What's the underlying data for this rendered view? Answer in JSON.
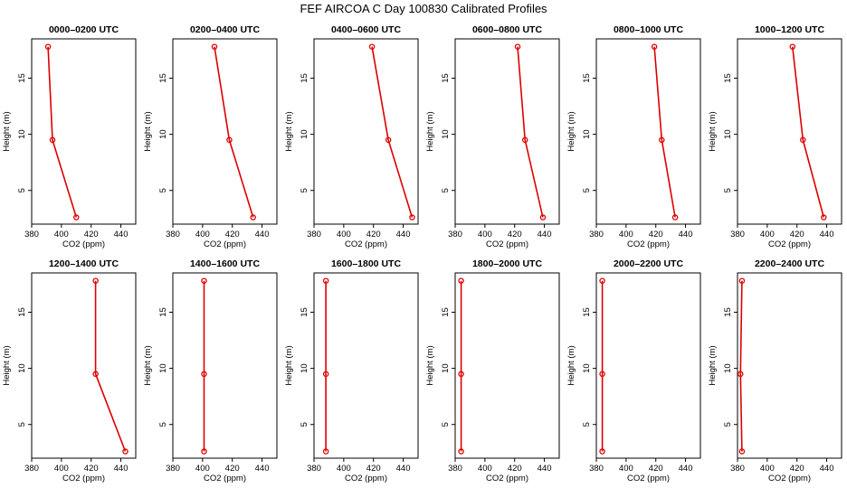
{
  "page": {
    "title": "FEF AIRCOA C  Day 100830  Calibrated Profiles"
  },
  "chart_data": [
    {
      "type": "line",
      "title": "0000–0200 UTC",
      "xlabel": "CO2 (ppm)",
      "ylabel": "Height (m)",
      "xlim": [
        380,
        450
      ],
      "ylim": [
        2,
        18.5
      ],
      "x_ticks": [
        380,
        400,
        420,
        440
      ],
      "y_ticks": [
        5,
        10,
        15
      ],
      "color": "#dd0000",
      "series": [
        {
          "points": [
            {
              "x": 391,
              "y": 17.8
            },
            {
              "x": 394,
              "y": 9.5
            },
            {
              "x": 410,
              "y": 2.6
            }
          ]
        }
      ]
    },
    {
      "type": "line",
      "title": "0200–0400 UTC",
      "xlabel": "CO2 (ppm)",
      "ylabel": "Height (m)",
      "xlim": [
        380,
        450
      ],
      "ylim": [
        2,
        18.5
      ],
      "x_ticks": [
        380,
        400,
        420,
        440
      ],
      "y_ticks": [
        5,
        10,
        15
      ],
      "color": "#dd0000",
      "series": [
        {
          "points": [
            {
              "x": 408,
              "y": 17.8
            },
            {
              "x": 418,
              "y": 9.5
            },
            {
              "x": 434,
              "y": 2.6
            }
          ]
        }
      ]
    },
    {
      "type": "line",
      "title": "0400–0600 UTC",
      "xlabel": "CO2 (ppm)",
      "ylabel": "Height (m)",
      "xlim": [
        380,
        450
      ],
      "ylim": [
        2,
        18.5
      ],
      "x_ticks": [
        380,
        400,
        420,
        440
      ],
      "y_ticks": [
        5,
        10,
        15
      ],
      "color": "#dd0000",
      "series": [
        {
          "points": [
            {
              "x": 419,
              "y": 17.8
            },
            {
              "x": 430,
              "y": 9.5
            },
            {
              "x": 446,
              "y": 2.6
            }
          ]
        }
      ]
    },
    {
      "type": "line",
      "title": "0600–0800 UTC",
      "xlabel": "CO2 (ppm)",
      "ylabel": "Height (m)",
      "xlim": [
        380,
        450
      ],
      "ylim": [
        2,
        18.5
      ],
      "x_ticks": [
        380,
        400,
        420,
        440
      ],
      "y_ticks": [
        5,
        10,
        15
      ],
      "color": "#dd0000",
      "series": [
        {
          "points": [
            {
              "x": 422,
              "y": 17.8
            },
            {
              "x": 427,
              "y": 9.5
            },
            {
              "x": 439,
              "y": 2.6
            }
          ]
        }
      ]
    },
    {
      "type": "line",
      "title": "0800–1000 UTC",
      "xlabel": "CO2 (ppm)",
      "ylabel": "Height (m)",
      "xlim": [
        380,
        450
      ],
      "ylim": [
        2,
        18.5
      ],
      "x_ticks": [
        380,
        400,
        420,
        440
      ],
      "y_ticks": [
        5,
        10,
        15
      ],
      "color": "#dd0000",
      "series": [
        {
          "points": [
            {
              "x": 419,
              "y": 17.8
            },
            {
              "x": 424,
              "y": 9.5
            },
            {
              "x": 433,
              "y": 2.6
            }
          ]
        }
      ]
    },
    {
      "type": "line",
      "title": "1000–1200 UTC",
      "xlabel": "CO2 (ppm)",
      "ylabel": "Height (m)",
      "xlim": [
        380,
        450
      ],
      "ylim": [
        2,
        18.5
      ],
      "x_ticks": [
        380,
        400,
        420,
        440
      ],
      "y_ticks": [
        5,
        10,
        15
      ],
      "color": "#dd0000",
      "series": [
        {
          "points": [
            {
              "x": 417,
              "y": 17.8
            },
            {
              "x": 424,
              "y": 9.5
            },
            {
              "x": 438,
              "y": 2.6
            }
          ]
        }
      ]
    },
    {
      "type": "line",
      "title": "1200–1400 UTC",
      "xlabel": "CO2 (ppm)",
      "ylabel": "Height (m)",
      "xlim": [
        380,
        450
      ],
      "ylim": [
        2,
        18.5
      ],
      "x_ticks": [
        380,
        400,
        420,
        440
      ],
      "y_ticks": [
        5,
        10,
        15
      ],
      "color": "#dd0000",
      "series": [
        {
          "points": [
            {
              "x": 423,
              "y": 17.8
            },
            {
              "x": 423,
              "y": 9.5
            },
            {
              "x": 443,
              "y": 2.6
            }
          ]
        }
      ]
    },
    {
      "type": "line",
      "title": "1400–1600 UTC",
      "xlabel": "CO2 (ppm)",
      "ylabel": "Height (m)",
      "xlim": [
        380,
        450
      ],
      "ylim": [
        2,
        18.5
      ],
      "x_ticks": [
        380,
        400,
        420,
        440
      ],
      "y_ticks": [
        5,
        10,
        15
      ],
      "color": "#dd0000",
      "series": [
        {
          "points": [
            {
              "x": 401,
              "y": 17.8
            },
            {
              "x": 401,
              "y": 9.5
            },
            {
              "x": 401,
              "y": 2.6
            }
          ]
        }
      ]
    },
    {
      "type": "line",
      "title": "1600–1800 UTC",
      "xlabel": "CO2 (ppm)",
      "ylabel": "Height (m)",
      "xlim": [
        380,
        450
      ],
      "ylim": [
        2,
        18.5
      ],
      "x_ticks": [
        380,
        400,
        420,
        440
      ],
      "y_ticks": [
        5,
        10,
        15
      ],
      "color": "#dd0000",
      "series": [
        {
          "points": [
            {
              "x": 388,
              "y": 17.8
            },
            {
              "x": 388,
              "y": 9.5
            },
            {
              "x": 388,
              "y": 2.6
            }
          ]
        }
      ]
    },
    {
      "type": "line",
      "title": "1800–2000 UTC",
      "xlabel": "CO2 (ppm)",
      "ylabel": "Height (m)",
      "xlim": [
        380,
        450
      ],
      "ylim": [
        2,
        18.5
      ],
      "x_ticks": [
        380,
        400,
        420,
        440
      ],
      "y_ticks": [
        5,
        10,
        15
      ],
      "color": "#dd0000",
      "series": [
        {
          "points": [
            {
              "x": 384,
              "y": 17.8
            },
            {
              "x": 384,
              "y": 9.5
            },
            {
              "x": 384,
              "y": 2.6
            }
          ]
        }
      ]
    },
    {
      "type": "line",
      "title": "2000–2200 UTC",
      "xlabel": "CO2 (ppm)",
      "ylabel": "Height (m)",
      "xlim": [
        380,
        450
      ],
      "ylim": [
        2,
        18.5
      ],
      "x_ticks": [
        380,
        400,
        420,
        440
      ],
      "y_ticks": [
        5,
        10,
        15
      ],
      "color": "#dd0000",
      "series": [
        {
          "points": [
            {
              "x": 384,
              "y": 17.8
            },
            {
              "x": 384,
              "y": 9.5
            },
            {
              "x": 384,
              "y": 2.6
            }
          ]
        }
      ]
    },
    {
      "type": "line",
      "title": "2200–2400 UTC",
      "xlabel": "CO2 (ppm)",
      "ylabel": "Height (m)",
      "xlim": [
        380,
        450
      ],
      "ylim": [
        2,
        18.5
      ],
      "x_ticks": [
        380,
        400,
        420,
        440
      ],
      "y_ticks": [
        5,
        10,
        15
      ],
      "color": "#dd0000",
      "series": [
        {
          "points": [
            {
              "x": 383,
              "y": 17.8
            },
            {
              "x": 382,
              "y": 9.5
            },
            {
              "x": 383,
              "y": 2.6
            }
          ]
        }
      ]
    }
  ]
}
